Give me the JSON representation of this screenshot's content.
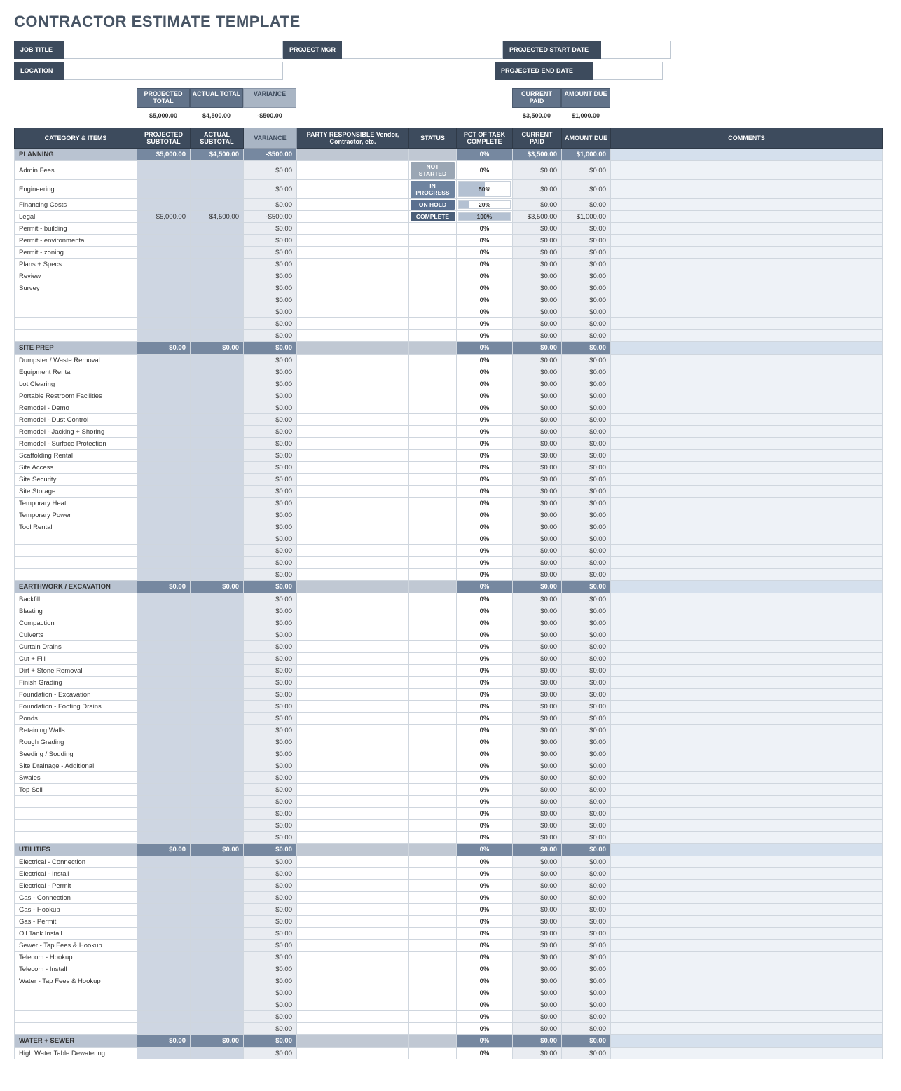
{
  "title": "CONTRACTOR ESTIMATE TEMPLATE",
  "info": {
    "job_title_label": "JOB TITLE",
    "project_mgr_label": "PROJECT MGR",
    "location_label": "LOCATION",
    "start_label": "PROJECTED START DATE",
    "end_label": "PROJECTED END DATE"
  },
  "strip": {
    "proj_total_label": "PROJECTED TOTAL",
    "act_total_label": "ACTUAL TOTAL",
    "variance_label": "VARIANCE",
    "cur_paid_label": "CURRENT PAID",
    "amt_due_label": "AMOUNT DUE",
    "proj_total": "$5,000.00",
    "act_total": "$4,500.00",
    "variance": "-$500.00",
    "cur_paid": "$3,500.00",
    "amt_due": "$1,000.00"
  },
  "cols": {
    "category": "CATEGORY & ITEMS",
    "proj_sub": "PROJECTED SUBTOTAL",
    "act_sub": "ACTUAL SUBTOTAL",
    "variance": "VARIANCE",
    "party": "PARTY RESPONSIBLE Vendor, Contractor, etc.",
    "status": "STATUS",
    "pct": "PCT OF TASK COMPLETE",
    "cur_paid": "CURRENT PAID",
    "amt_due": "AMOUNT DUE",
    "comments": "COMMENTS"
  },
  "status_labels": {
    "not": "NOT STARTED",
    "prog": "IN PROGRESS",
    "hold": "ON HOLD",
    "comp": "COMPLETE"
  },
  "sections": [
    {
      "name": "PLANNING",
      "proj": "$5,000.00",
      "act": "$4,500.00",
      "var": "-$500.00",
      "pct": "0%",
      "cp": "$3,500.00",
      "ad": "$1,000.00",
      "items": [
        {
          "name": "Admin Fees",
          "var": "$0.00",
          "status": "not",
          "pct": "0%",
          "cp": "$0.00",
          "ad": "$0.00"
        },
        {
          "name": "Engineering",
          "var": "$0.00",
          "status": "prog",
          "pct": "50%",
          "pctv": 50,
          "cp": "$0.00",
          "ad": "$0.00"
        },
        {
          "name": "Financing Costs",
          "var": "$0.00",
          "status": "hold",
          "pct": "20%",
          "pctv": 20,
          "cp": "$0.00",
          "ad": "$0.00"
        },
        {
          "name": "Legal",
          "proj": "$5,000.00",
          "act": "$4,500.00",
          "var": "-$500.00",
          "status": "comp",
          "pct": "100%",
          "pctv": 100,
          "cp": "$3,500.00",
          "ad": "$1,000.00"
        },
        {
          "name": "Permit - building",
          "var": "$0.00",
          "pct": "0%",
          "cp": "$0.00",
          "ad": "$0.00"
        },
        {
          "name": "Permit - environmental",
          "var": "$0.00",
          "pct": "0%",
          "cp": "$0.00",
          "ad": "$0.00"
        },
        {
          "name": "Permit - zoning",
          "var": "$0.00",
          "pct": "0%",
          "cp": "$0.00",
          "ad": "$0.00"
        },
        {
          "name": "Plans + Specs",
          "var": "$0.00",
          "pct": "0%",
          "cp": "$0.00",
          "ad": "$0.00"
        },
        {
          "name": "Review",
          "var": "$0.00",
          "pct": "0%",
          "cp": "$0.00",
          "ad": "$0.00"
        },
        {
          "name": "Survey",
          "var": "$0.00",
          "pct": "0%",
          "cp": "$0.00",
          "ad": "$0.00"
        },
        {
          "name": "",
          "var": "$0.00",
          "pct": "0%",
          "cp": "$0.00",
          "ad": "$0.00"
        },
        {
          "name": "",
          "var": "$0.00",
          "pct": "0%",
          "cp": "$0.00",
          "ad": "$0.00"
        },
        {
          "name": "",
          "var": "$0.00",
          "pct": "0%",
          "cp": "$0.00",
          "ad": "$0.00"
        },
        {
          "name": "",
          "var": "$0.00",
          "pct": "0%",
          "cp": "$0.00",
          "ad": "$0.00"
        }
      ]
    },
    {
      "name": "SITE PREP",
      "proj": "$0.00",
      "act": "$0.00",
      "var": "$0.00",
      "pct": "0%",
      "cp": "$0.00",
      "ad": "$0.00",
      "items": [
        {
          "name": "Dumpster / Waste Removal",
          "var": "$0.00",
          "pct": "0%",
          "cp": "$0.00",
          "ad": "$0.00"
        },
        {
          "name": "Equipment Rental",
          "var": "$0.00",
          "pct": "0%",
          "cp": "$0.00",
          "ad": "$0.00"
        },
        {
          "name": "Lot Clearing",
          "var": "$0.00",
          "pct": "0%",
          "cp": "$0.00",
          "ad": "$0.00"
        },
        {
          "name": "Portable Restroom Facilities",
          "var": "$0.00",
          "pct": "0%",
          "cp": "$0.00",
          "ad": "$0.00"
        },
        {
          "name": "Remodel - Demo",
          "var": "$0.00",
          "pct": "0%",
          "cp": "$0.00",
          "ad": "$0.00"
        },
        {
          "name": "Remodel - Dust Control",
          "var": "$0.00",
          "pct": "0%",
          "cp": "$0.00",
          "ad": "$0.00"
        },
        {
          "name": "Remodel - Jacking + Shoring",
          "var": "$0.00",
          "pct": "0%",
          "cp": "$0.00",
          "ad": "$0.00"
        },
        {
          "name": "Remodel - Surface Protection",
          "var": "$0.00",
          "pct": "0%",
          "cp": "$0.00",
          "ad": "$0.00"
        },
        {
          "name": "Scaffolding Rental",
          "var": "$0.00",
          "pct": "0%",
          "cp": "$0.00",
          "ad": "$0.00"
        },
        {
          "name": "Site Access",
          "var": "$0.00",
          "pct": "0%",
          "cp": "$0.00",
          "ad": "$0.00"
        },
        {
          "name": "Site Security",
          "var": "$0.00",
          "pct": "0%",
          "cp": "$0.00",
          "ad": "$0.00"
        },
        {
          "name": "Site Storage",
          "var": "$0.00",
          "pct": "0%",
          "cp": "$0.00",
          "ad": "$0.00"
        },
        {
          "name": "Temporary Heat",
          "var": "$0.00",
          "pct": "0%",
          "cp": "$0.00",
          "ad": "$0.00"
        },
        {
          "name": "Temporary Power",
          "var": "$0.00",
          "pct": "0%",
          "cp": "$0.00",
          "ad": "$0.00"
        },
        {
          "name": "Tool Rental",
          "var": "$0.00",
          "pct": "0%",
          "cp": "$0.00",
          "ad": "$0.00"
        },
        {
          "name": "",
          "var": "$0.00",
          "pct": "0%",
          "cp": "$0.00",
          "ad": "$0.00"
        },
        {
          "name": "",
          "var": "$0.00",
          "pct": "0%",
          "cp": "$0.00",
          "ad": "$0.00"
        },
        {
          "name": "",
          "var": "$0.00",
          "pct": "0%",
          "cp": "$0.00",
          "ad": "$0.00"
        },
        {
          "name": "",
          "var": "$0.00",
          "pct": "0%",
          "cp": "$0.00",
          "ad": "$0.00"
        }
      ]
    },
    {
      "name": "EARTHWORK / EXCAVATION",
      "proj": "$0.00",
      "act": "$0.00",
      "var": "$0.00",
      "pct": "0%",
      "cp": "$0.00",
      "ad": "$0.00",
      "items": [
        {
          "name": "Backfill",
          "var": "$0.00",
          "pct": "0%",
          "cp": "$0.00",
          "ad": "$0.00"
        },
        {
          "name": "Blasting",
          "var": "$0.00",
          "pct": "0%",
          "cp": "$0.00",
          "ad": "$0.00"
        },
        {
          "name": "Compaction",
          "var": "$0.00",
          "pct": "0%",
          "cp": "$0.00",
          "ad": "$0.00"
        },
        {
          "name": "Culverts",
          "var": "$0.00",
          "pct": "0%",
          "cp": "$0.00",
          "ad": "$0.00"
        },
        {
          "name": "Curtain Drains",
          "var": "$0.00",
          "pct": "0%",
          "cp": "$0.00",
          "ad": "$0.00"
        },
        {
          "name": "Cut + Fill",
          "var": "$0.00",
          "pct": "0%",
          "cp": "$0.00",
          "ad": "$0.00"
        },
        {
          "name": "Dirt + Stone Removal",
          "var": "$0.00",
          "pct": "0%",
          "cp": "$0.00",
          "ad": "$0.00"
        },
        {
          "name": "Finish Grading",
          "var": "$0.00",
          "pct": "0%",
          "cp": "$0.00",
          "ad": "$0.00"
        },
        {
          "name": "Foundation - Excavation",
          "var": "$0.00",
          "pct": "0%",
          "cp": "$0.00",
          "ad": "$0.00"
        },
        {
          "name": "Foundation - Footing Drains",
          "var": "$0.00",
          "pct": "0%",
          "cp": "$0.00",
          "ad": "$0.00"
        },
        {
          "name": "Ponds",
          "var": "$0.00",
          "pct": "0%",
          "cp": "$0.00",
          "ad": "$0.00"
        },
        {
          "name": "Retaining Walls",
          "var": "$0.00",
          "pct": "0%",
          "cp": "$0.00",
          "ad": "$0.00"
        },
        {
          "name": "Rough Grading",
          "var": "$0.00",
          "pct": "0%",
          "cp": "$0.00",
          "ad": "$0.00"
        },
        {
          "name": "Seeding / Sodding",
          "var": "$0.00",
          "pct": "0%",
          "cp": "$0.00",
          "ad": "$0.00"
        },
        {
          "name": "Site Drainage - Additional",
          "var": "$0.00",
          "pct": "0%",
          "cp": "$0.00",
          "ad": "$0.00"
        },
        {
          "name": "Swales",
          "var": "$0.00",
          "pct": "0%",
          "cp": "$0.00",
          "ad": "$0.00"
        },
        {
          "name": "Top Soil",
          "var": "$0.00",
          "pct": "0%",
          "cp": "$0.00",
          "ad": "$0.00"
        },
        {
          "name": "",
          "var": "$0.00",
          "pct": "0%",
          "cp": "$0.00",
          "ad": "$0.00"
        },
        {
          "name": "",
          "var": "$0.00",
          "pct": "0%",
          "cp": "$0.00",
          "ad": "$0.00"
        },
        {
          "name": "",
          "var": "$0.00",
          "pct": "0%",
          "cp": "$0.00",
          "ad": "$0.00"
        },
        {
          "name": "",
          "var": "$0.00",
          "pct": "0%",
          "cp": "$0.00",
          "ad": "$0.00"
        }
      ]
    },
    {
      "name": "UTILITIES",
      "proj": "$0.00",
      "act": "$0.00",
      "var": "$0.00",
      "pct": "0%",
      "cp": "$0.00",
      "ad": "$0.00",
      "items": [
        {
          "name": "Electrical - Connection",
          "var": "$0.00",
          "pct": "0%",
          "cp": "$0.00",
          "ad": "$0.00"
        },
        {
          "name": "Electrical - Install",
          "var": "$0.00",
          "pct": "0%",
          "cp": "$0.00",
          "ad": "$0.00"
        },
        {
          "name": "Electrical - Permit",
          "var": "$0.00",
          "pct": "0%",
          "cp": "$0.00",
          "ad": "$0.00"
        },
        {
          "name": "Gas - Connection",
          "var": "$0.00",
          "pct": "0%",
          "cp": "$0.00",
          "ad": "$0.00"
        },
        {
          "name": "Gas - Hookup",
          "var": "$0.00",
          "pct": "0%",
          "cp": "$0.00",
          "ad": "$0.00"
        },
        {
          "name": "Gas - Permit",
          "var": "$0.00",
          "pct": "0%",
          "cp": "$0.00",
          "ad": "$0.00"
        },
        {
          "name": "Oil Tank Install",
          "var": "$0.00",
          "pct": "0%",
          "cp": "$0.00",
          "ad": "$0.00"
        },
        {
          "name": "Sewer - Tap Fees & Hookup",
          "var": "$0.00",
          "pct": "0%",
          "cp": "$0.00",
          "ad": "$0.00"
        },
        {
          "name": "Telecom - Hookup",
          "var": "$0.00",
          "pct": "0%",
          "cp": "$0.00",
          "ad": "$0.00"
        },
        {
          "name": "Telecom - Install",
          "var": "$0.00",
          "pct": "0%",
          "cp": "$0.00",
          "ad": "$0.00"
        },
        {
          "name": "Water - Tap Fees & Hookup",
          "var": "$0.00",
          "pct": "0%",
          "cp": "$0.00",
          "ad": "$0.00"
        },
        {
          "name": "",
          "var": "$0.00",
          "pct": "0%",
          "cp": "$0.00",
          "ad": "$0.00"
        },
        {
          "name": "",
          "var": "$0.00",
          "pct": "0%",
          "cp": "$0.00",
          "ad": "$0.00"
        },
        {
          "name": "",
          "var": "$0.00",
          "pct": "0%",
          "cp": "$0.00",
          "ad": "$0.00"
        },
        {
          "name": "",
          "var": "$0.00",
          "pct": "0%",
          "cp": "$0.00",
          "ad": "$0.00"
        }
      ]
    },
    {
      "name": "WATER + SEWER",
      "proj": "$0.00",
      "act": "$0.00",
      "var": "$0.00",
      "pct": "0%",
      "cp": "$0.00",
      "ad": "$0.00",
      "items": [
        {
          "name": "High Water Table Dewatering",
          "var": "$0.00",
          "pct": "0%",
          "cp": "$0.00",
          "ad": "$0.00"
        }
      ]
    }
  ],
  "colors": {
    "dark": "#3d4b5d",
    "mid": "#62738a",
    "light": "#a9b5c4",
    "section_num": "#7688a0",
    "section_cat": "#b9c3d1",
    "section_comm": "#d5e0ed",
    "cell_input": "#ced6e2",
    "cell_calc": "#e9ecf1",
    "cell_comm": "#eef2f7",
    "border": "#cfd6de"
  }
}
